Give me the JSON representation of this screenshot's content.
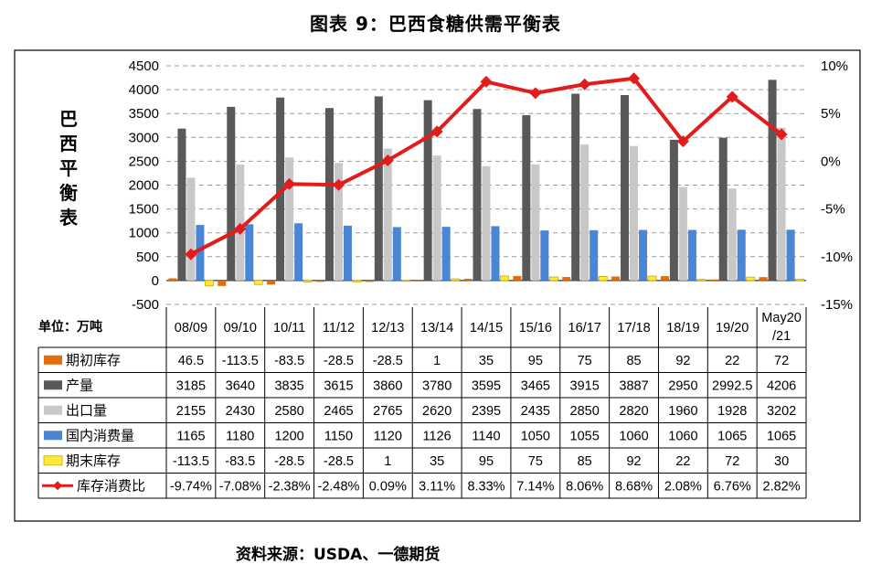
{
  "figure": {
    "title": "图表 9：巴西食糖供需平衡表",
    "source": "资料来源：USDA、一德期货"
  },
  "chart_data": {
    "type": "bar",
    "title": "图表 9：巴西食糖供需平衡表",
    "ylabel": "巴西平衡表",
    "unit_label": "单位：万吨",
    "ylim": [
      -500,
      4500
    ],
    "yticks": [
      "-500",
      "0",
      "500",
      "1000",
      "1500",
      "2000",
      "2500",
      "3000",
      "3500",
      "4000",
      "4500"
    ],
    "y2lim": [
      -15,
      10
    ],
    "y2ticks": [
      "-15%",
      "-10%",
      "-5%",
      "0%",
      "5%",
      "10%"
    ],
    "grid": true,
    "categories": [
      "08/09",
      "09/10",
      "10/11",
      "11/12",
      "12/13",
      "13/14",
      "14/15",
      "15/16",
      "16/17",
      "17/18",
      "18/19",
      "19/20",
      "May20/21"
    ],
    "category_lines": [
      [
        "08/09"
      ],
      [
        "09/10"
      ],
      [
        "10/11"
      ],
      [
        "11/12"
      ],
      [
        "12/13"
      ],
      [
        "13/14"
      ],
      [
        "14/15"
      ],
      [
        "15/16"
      ],
      [
        "16/17"
      ],
      [
        "17/18"
      ],
      [
        "18/19"
      ],
      [
        "19/20"
      ],
      [
        "May20",
        "/21"
      ]
    ],
    "series": [
      {
        "name": "期初库存",
        "type": "bar",
        "color": "#E46C0A",
        "axis": "left",
        "values": [
          46.5,
          -113.5,
          -83.5,
          -28.5,
          -28.5,
          1,
          35,
          95,
          75,
          85,
          92,
          22,
          72
        ],
        "labels": [
          "46.5",
          "-113.5",
          "-83.5",
          "-28.5",
          "-28.5",
          "1",
          "35",
          "95",
          "75",
          "85",
          "92",
          "22",
          "72"
        ]
      },
      {
        "name": "产量",
        "type": "bar",
        "color": "#595959",
        "axis": "left",
        "values": [
          3185,
          3640,
          3835,
          3615,
          3860,
          3780,
          3595,
          3465,
          3915,
          3887,
          2950,
          2992.5,
          4206
        ],
        "labels": [
          "3185",
          "3640",
          "3835",
          "3615",
          "3860",
          "3780",
          "3595",
          "3465",
          "3915",
          "3887",
          "2950",
          "2992.5",
          "4206"
        ]
      },
      {
        "name": "出口量",
        "type": "bar",
        "color": "#C8C8C8",
        "axis": "left",
        "values": [
          2155,
          2430,
          2580,
          2465,
          2765,
          2620,
          2395,
          2435,
          2850,
          2820,
          1960,
          1928,
          3202
        ],
        "labels": [
          "2155",
          "2430",
          "2580",
          "2465",
          "2765",
          "2620",
          "2395",
          "2435",
          "2850",
          "2820",
          "1960",
          "1928",
          "3202"
        ]
      },
      {
        "name": "国内消费量",
        "type": "bar",
        "color": "#4A86D4",
        "axis": "left",
        "values": [
          1165,
          1180,
          1200,
          1150,
          1120,
          1126,
          1140,
          1050,
          1055,
          1060,
          1060,
          1065,
          1065
        ],
        "labels": [
          "1165",
          "1180",
          "1200",
          "1150",
          "1120",
          "1126",
          "1140",
          "1050",
          "1055",
          "1060",
          "1060",
          "1065",
          "1065"
        ]
      },
      {
        "name": "期末库存",
        "type": "bar",
        "color": "#FFEB3B",
        "axis": "left",
        "values": [
          -113.5,
          -83.5,
          -28.5,
          -28.5,
          1,
          35,
          95,
          75,
          85,
          92,
          22,
          72,
          30
        ],
        "labels": [
          "-113.5",
          "-83.5",
          "-28.5",
          "-28.5",
          "1",
          "35",
          "95",
          "75",
          "85",
          "92",
          "22",
          "72",
          "30"
        ]
      },
      {
        "name": "库存消费比",
        "type": "line",
        "color": "#E31B1B",
        "axis": "right",
        "values": [
          -9.74,
          -7.08,
          -2.38,
          -2.48,
          0.09,
          3.11,
          8.33,
          7.14,
          8.06,
          8.68,
          2.08,
          6.76,
          2.82
        ],
        "labels": [
          "-9.74%",
          "-7.08%",
          "-2.38%",
          "-2.48%",
          "0.09%",
          "3.11%",
          "8.33%",
          "7.14%",
          "8.06%",
          "8.68%",
          "2.08%",
          "6.76%",
          "2.82%"
        ]
      }
    ]
  }
}
